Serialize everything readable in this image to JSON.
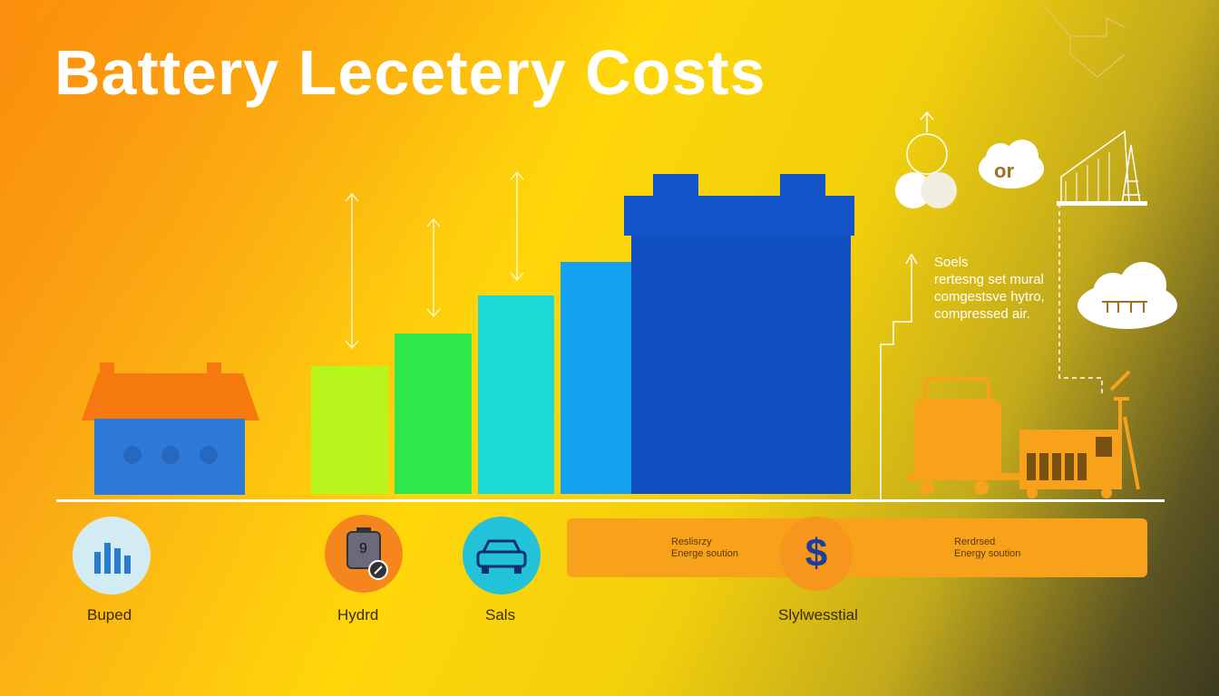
{
  "title": "Battery Lecetery Costs",
  "side_note": {
    "line1": "Soels",
    "line2": "rertesng set mural",
    "line3": "comgestsve hytro,",
    "line4": "compressed air."
  },
  "cloud_badge": "or",
  "panel": {
    "left_line1": "Reslisrzy",
    "left_line2": "Energe soution",
    "right_line1": "Rerdrsed",
    "right_line2": "Energy soution",
    "currency_symbol": "$"
  },
  "bottom_items": [
    {
      "label": "Buped",
      "icon": "bar-chart-icon"
    },
    {
      "label": "Hydrd",
      "icon": "battery-gauge-icon"
    },
    {
      "label": "Sals",
      "icon": "car-icon"
    },
    {
      "label": "Slylwesstial",
      "icon": "dollar-icon"
    }
  ],
  "battery_icon_digit": "9",
  "colors": {
    "bar1": "#b7f51c",
    "bar2": "#2ee84b",
    "bar3": "#1ad9d6",
    "bar4": "#14a3ee",
    "bar5": "#1155c8",
    "house_roof": "#f5790f",
    "house_body": "#2f7ad8"
  }
}
